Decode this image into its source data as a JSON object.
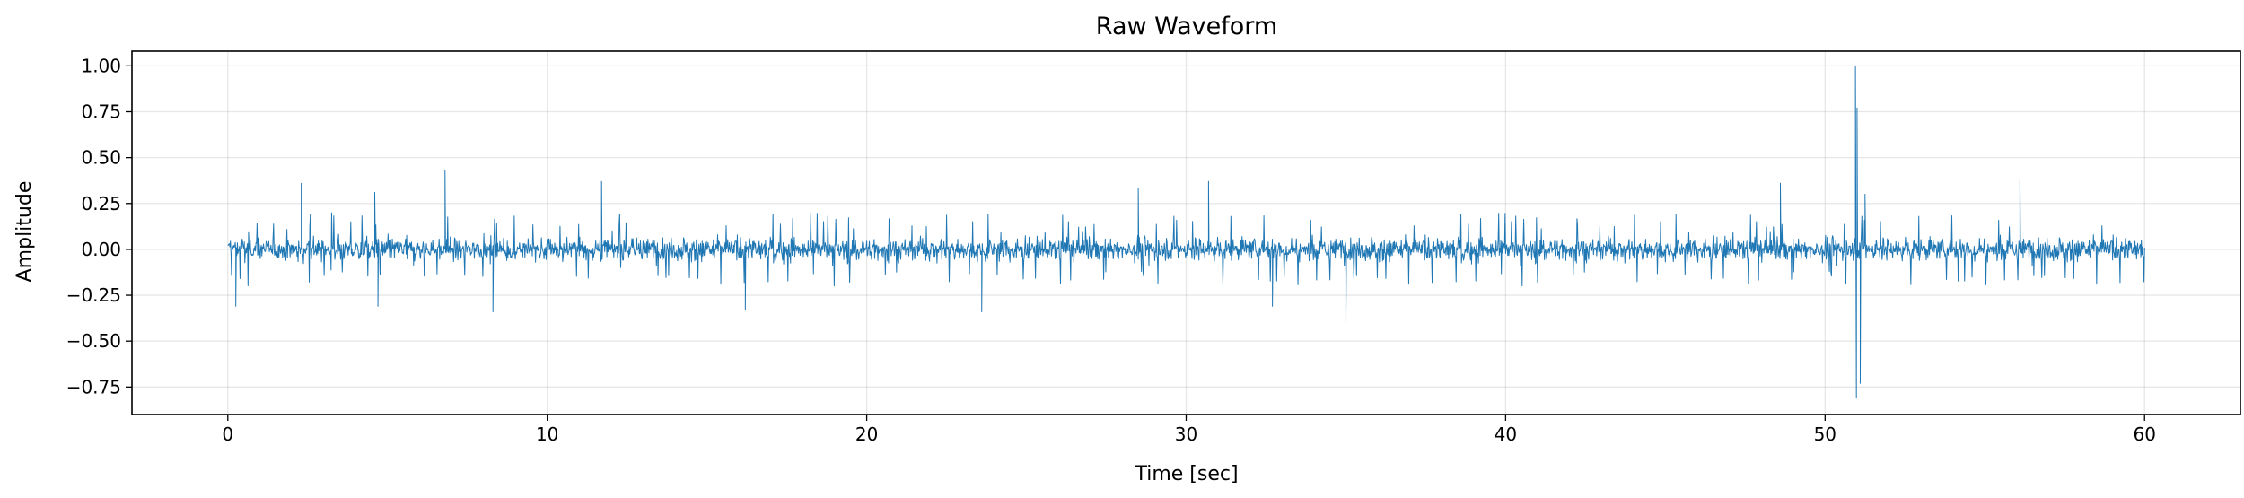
{
  "chart_data": {
    "type": "line",
    "title": "Raw Waveform",
    "xlabel": "Time [sec]",
    "ylabel": "Amplitude",
    "xlim": [
      -3,
      63
    ],
    "ylim": [
      -0.9,
      1.08
    ],
    "xticks": [
      0,
      10,
      20,
      30,
      40,
      50,
      60
    ],
    "xtick_labels": [
      "0",
      "10",
      "20",
      "30",
      "40",
      "50",
      "60"
    ],
    "yticks": [
      1.0,
      0.75,
      0.5,
      0.25,
      0.0,
      -0.25,
      -0.5,
      -0.75
    ],
    "ytick_labels": [
      "1.00",
      "0.75",
      "0.50",
      "0.25",
      "0.00",
      "−0.25",
      "−0.50",
      "−0.75"
    ],
    "grid": true,
    "series": [
      {
        "color": "#1f77b4",
        "x_range": [
          0,
          60
        ],
        "baseline_amplitude": 0.1,
        "peaks": [
          {
            "x": 0.25,
            "y": -0.31
          },
          {
            "x": 2.3,
            "y": 0.36
          },
          {
            "x": 4.6,
            "y": 0.31
          },
          {
            "x": 4.7,
            "y": -0.31
          },
          {
            "x": 6.8,
            "y": 0.43
          },
          {
            "x": 8.3,
            "y": -0.34
          },
          {
            "x": 11.7,
            "y": 0.37
          },
          {
            "x": 16.2,
            "y": -0.33
          },
          {
            "x": 23.6,
            "y": -0.34
          },
          {
            "x": 28.5,
            "y": 0.33
          },
          {
            "x": 30.7,
            "y": 0.37
          },
          {
            "x": 32.7,
            "y": -0.31
          },
          {
            "x": 35.0,
            "y": -0.4
          },
          {
            "x": 48.6,
            "y": 0.36
          },
          {
            "x": 50.95,
            "y": 1.0
          },
          {
            "x": 50.98,
            "y": -0.81
          },
          {
            "x": 51.0,
            "y": 0.77
          },
          {
            "x": 51.1,
            "y": -0.73
          },
          {
            "x": 51.25,
            "y": 0.3
          },
          {
            "x": 56.1,
            "y": 0.38
          }
        ]
      }
    ]
  }
}
